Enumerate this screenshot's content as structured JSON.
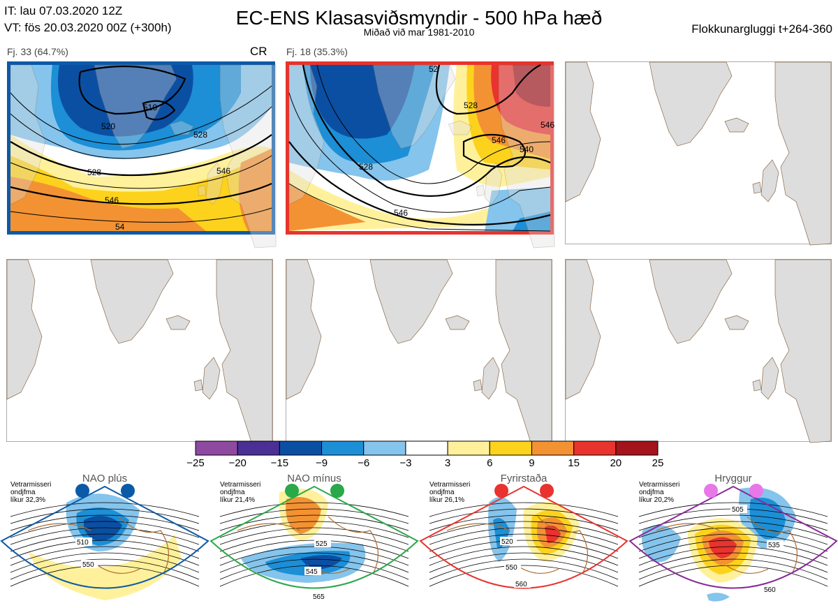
{
  "header": {
    "it_line": "IT: lau 07.03.2020 12Z",
    "vt_line": "VT: fös 20.03.2020 00Z  (+300h)",
    "title": "EC-ENS Klasasviðsmyndir - 500 hPa hæð",
    "subtitle": "Miðað við mar 1981-2010",
    "window": "Flokkunargluggi t+264-360"
  },
  "panels": [
    {
      "label": "Fj. 33 (64.7%)",
      "tag": "CR",
      "border": "#0b5aa8",
      "contour_labels": [
        "520",
        "510",
        "528",
        "528",
        "546",
        "546",
        "54"
      ]
    },
    {
      "label": "Fj. 18 (35.3%)",
      "tag": "",
      "border": "#e8332e",
      "contour_labels": [
        "528",
        "52",
        "528",
        "546",
        "546",
        "540",
        "546"
      ]
    }
  ],
  "colorbar": {
    "colors": [
      "#8e4aa0",
      "#4a2f94",
      "#0b4fa3",
      "#1c8fd6",
      "#85c4ec",
      "#ffffff",
      "#fff19b",
      "#fdd21d",
      "#f39233",
      "#e8332e",
      "#a3141b"
    ],
    "labels": [
      "−25",
      "−20",
      "−15",
      "−9",
      "−6",
      "−3",
      "3",
      "6",
      "9",
      "15",
      "20",
      "25"
    ]
  },
  "regimes": [
    {
      "title": "NAO plús",
      "note": [
        "Vetrarmisseri",
        "ondjfma",
        "líkur 32,3%"
      ],
      "color": "#0b5aa8",
      "dot_color": "#0b5aa8",
      "contours": [
        "510",
        "550"
      ]
    },
    {
      "title": "NAO mínus",
      "note": [
        "Vetrarmisseri",
        "ondjfma",
        "líkur 21,4%"
      ],
      "color": "#2aa84a",
      "dot_color": "#2aa84a",
      "contours": [
        "525",
        "545",
        "565"
      ]
    },
    {
      "title": "Fyrirstaða",
      "note": [
        "Vetrarmisseri",
        "ondjfma",
        "líkur 26,1%"
      ],
      "color": "#e8332e",
      "dot_color": "#e8332e",
      "contours": [
        "520",
        "550",
        "560"
      ]
    },
    {
      "title": "Hryggur",
      "note": [
        "Vetrarmisseri",
        "ondjfma",
        "líkur 20,2%"
      ],
      "color": "#8a2a9a",
      "dot_color": "#e878e8",
      "contours": [
        "505",
        "535",
        "560"
      ]
    }
  ]
}
